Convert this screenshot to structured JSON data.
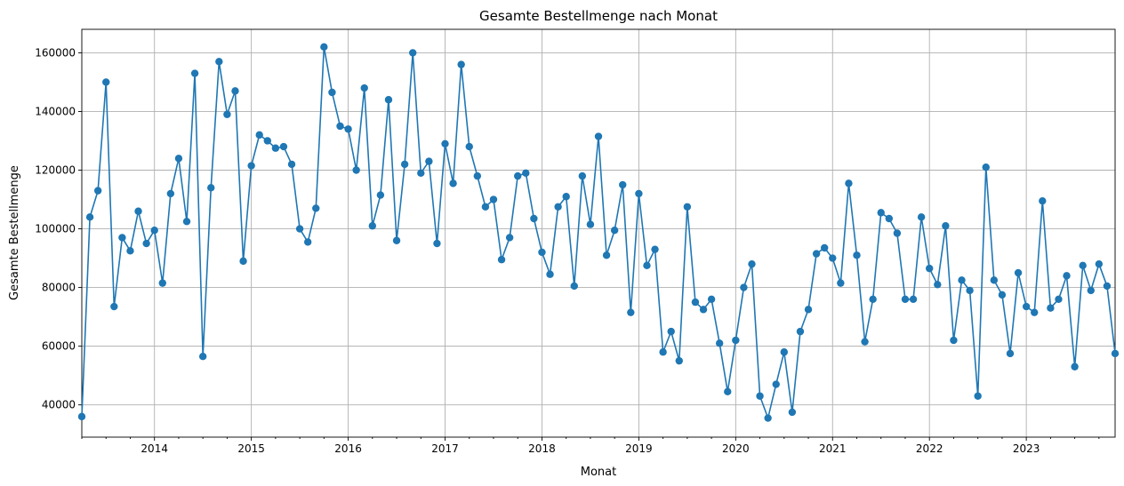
{
  "chart_data": {
    "type": "line",
    "title": "Gesamte Bestellmenge nach Monat",
    "xlabel": "Monat",
    "ylabel": "Gesamte Bestellmenge",
    "x_start": "2013-04",
    "x_end": "2023-12",
    "xlim": [
      "2013-04",
      "2023-12"
    ],
    "ylim": [
      29000,
      168000
    ],
    "grid": true,
    "color": "#1f77b4",
    "x_ticks": [
      {
        "month": "2014-01",
        "label": "2014"
      },
      {
        "month": "2015-01",
        "label": "2015"
      },
      {
        "month": "2016-01",
        "label": "2016"
      },
      {
        "month": "2017-01",
        "label": "2017"
      },
      {
        "month": "2018-01",
        "label": "2018"
      },
      {
        "month": "2019-01",
        "label": "2019"
      },
      {
        "month": "2020-01",
        "label": "2020"
      },
      {
        "month": "2021-01",
        "label": "2021"
      },
      {
        "month": "2022-01",
        "label": "2022"
      },
      {
        "month": "2023-01",
        "label": "2023"
      }
    ],
    "y_ticks": [
      {
        "value": 40000,
        "label": "40000"
      },
      {
        "value": 60000,
        "label": "60000"
      },
      {
        "value": 80000,
        "label": "80000"
      },
      {
        "value": 100000,
        "label": "100000"
      },
      {
        "value": 120000,
        "label": "120000"
      },
      {
        "value": 140000,
        "label": "140000"
      },
      {
        "value": 160000,
        "label": "160000"
      }
    ],
    "series": [
      {
        "values": [
          36000,
          104000,
          113000,
          150000,
          73500,
          97000,
          92500,
          106000,
          95000,
          99500,
          81500,
          112000,
          124000,
          102500,
          153000,
          56500,
          114000,
          157000,
          139000,
          147000,
          89000,
          121500,
          132000,
          130000,
          127500,
          128000,
          122000,
          100000,
          95500,
          107000,
          162000,
          146500,
          135000,
          134000,
          120000,
          148000,
          101000,
          111500,
          144000,
          96000,
          122000,
          160000,
          119000,
          123000,
          95000,
          129000,
          115500,
          156000,
          128000,
          118000,
          107500,
          110000,
          89500,
          97000,
          118000,
          119000,
          103500,
          92000,
          84500,
          107500,
          111000,
          80500,
          118000,
          101500,
          131500,
          91000,
          99500,
          115000,
          71500,
          112000,
          87500,
          93000,
          58000,
          65000,
          55000,
          107500,
          75000,
          72500,
          76000,
          61000,
          44500,
          62000,
          80000,
          88000,
          43000,
          35500,
          47000,
          58000,
          37500,
          65000,
          72500,
          91500,
          93500,
          90000,
          81500,
          115500,
          91000,
          61500,
          76000,
          105500,
          103500,
          98500,
          76000,
          76000,
          104000,
          86500,
          81000,
          101000,
          62000,
          82500,
          79000,
          43000,
          121000,
          82500,
          77500,
          57500,
          85000,
          73500,
          71500,
          109500,
          73000,
          76000,
          84000,
          53000,
          87500,
          79000,
          88000,
          80500,
          57500
        ]
      }
    ]
  }
}
